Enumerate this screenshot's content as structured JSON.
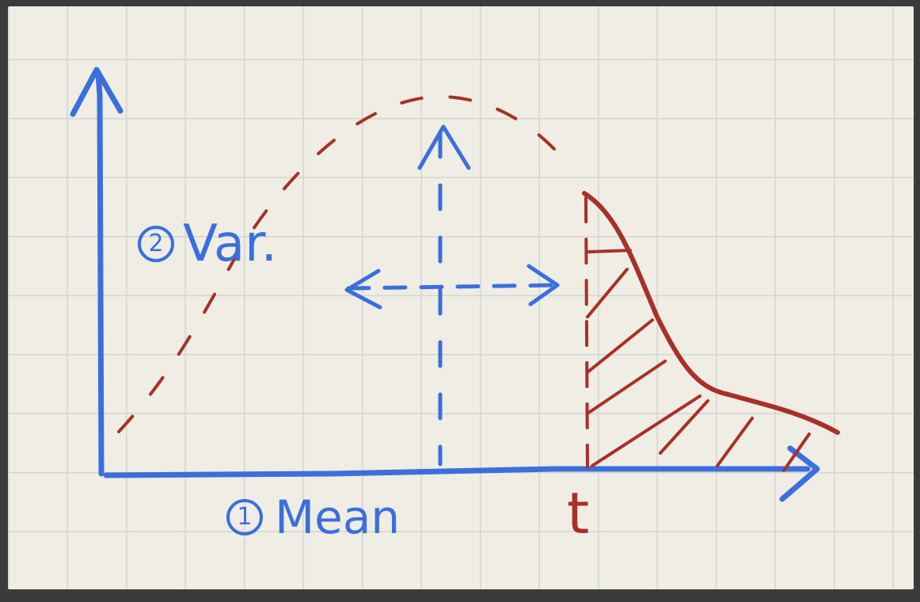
{
  "labels": {
    "var_number": "2",
    "var_text": "Var.",
    "mean_number": "1",
    "mean_text": "Mean",
    "threshold": "t"
  },
  "colors": {
    "axis_ink": "#3a6fdd",
    "curve_ink": "#a8302a",
    "paper": "#efede4",
    "grid": "#d3d6cf",
    "frame": "#3b3b3b"
  }
}
